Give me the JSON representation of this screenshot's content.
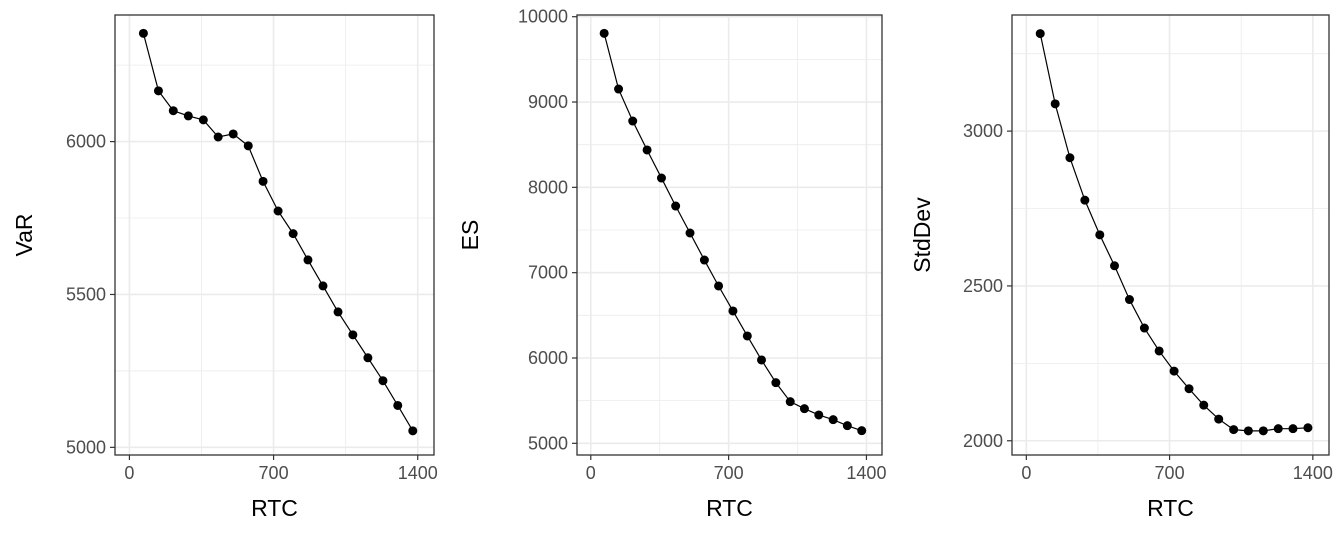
{
  "chart_data": [
    {
      "type": "line",
      "xlabel": "RTC",
      "ylabel": "VaR",
      "xlim": [
        -70,
        1479
      ],
      "ylim": [
        4975,
        6414
      ],
      "x_ticks": [
        0,
        700,
        1400
      ],
      "x_tick_labels": [
        "0",
        "700",
        "1400"
      ],
      "y_ticks": [
        5000,
        5500,
        6000
      ],
      "y_tick_labels": [
        "5000",
        "5500",
        "6000"
      ],
      "grid": true,
      "x": [
        68,
        141,
        213,
        286,
        359,
        431,
        504,
        577,
        649,
        722,
        795,
        867,
        940,
        1013,
        1085,
        1158,
        1231,
        1303,
        1376
      ],
      "y": [
        6354,
        6166,
        6101,
        6084,
        6071,
        6015,
        6025,
        5986,
        5870,
        5773,
        5699,
        5613,
        5528,
        5443,
        5368,
        5293,
        5218,
        5137,
        5054
      ]
    },
    {
      "type": "line",
      "xlabel": "RTC",
      "ylabel": "ES",
      "xlim": [
        -70,
        1479
      ],
      "ylim": [
        4863,
        10020
      ],
      "x_ticks": [
        0,
        700,
        1400
      ],
      "x_tick_labels": [
        "0",
        "700",
        "1400"
      ],
      "y_ticks": [
        5000,
        6000,
        7000,
        8000,
        9000,
        10000
      ],
      "y_tick_labels": [
        "5000",
        "6000",
        "7000",
        "8000",
        "9000",
        "10000"
      ],
      "grid": true,
      "x": [
        68,
        141,
        213,
        286,
        359,
        431,
        504,
        577,
        649,
        722,
        795,
        867,
        940,
        1013,
        1085,
        1158,
        1231,
        1303,
        1376
      ],
      "y": [
        9805,
        9152,
        8777,
        8438,
        8109,
        7781,
        7465,
        7148,
        6844,
        6551,
        6258,
        5977,
        5711,
        5488,
        5406,
        5332,
        5277,
        5207,
        5148
      ]
    },
    {
      "type": "line",
      "xlabel": "RTC",
      "ylabel": "StdDev",
      "xlim": [
        -70,
        1479
      ],
      "ylim": [
        1954,
        3375
      ],
      "x_ticks": [
        0,
        700,
        1400
      ],
      "x_tick_labels": [
        "0",
        "700",
        "1400"
      ],
      "y_ticks": [
        2000,
        2500,
        3000
      ],
      "y_tick_labels": [
        "2000",
        "2500",
        "3000"
      ],
      "grid": true,
      "x": [
        68,
        141,
        213,
        286,
        359,
        431,
        504,
        577,
        649,
        722,
        795,
        867,
        940,
        1013,
        1085,
        1158,
        1231,
        1303,
        1376
      ],
      "y": [
        3315,
        3088,
        2914,
        2777,
        2665,
        2565,
        2456,
        2364,
        2290,
        2225,
        2168,
        2115,
        2070,
        2036,
        2032,
        2032,
        2039,
        2039,
        2042
      ]
    }
  ],
  "colors": {
    "line": "#000000",
    "points": "#000000",
    "grid": "#ebebeb",
    "panel_border": "#333333",
    "tick_text": "#4d4d4d"
  }
}
